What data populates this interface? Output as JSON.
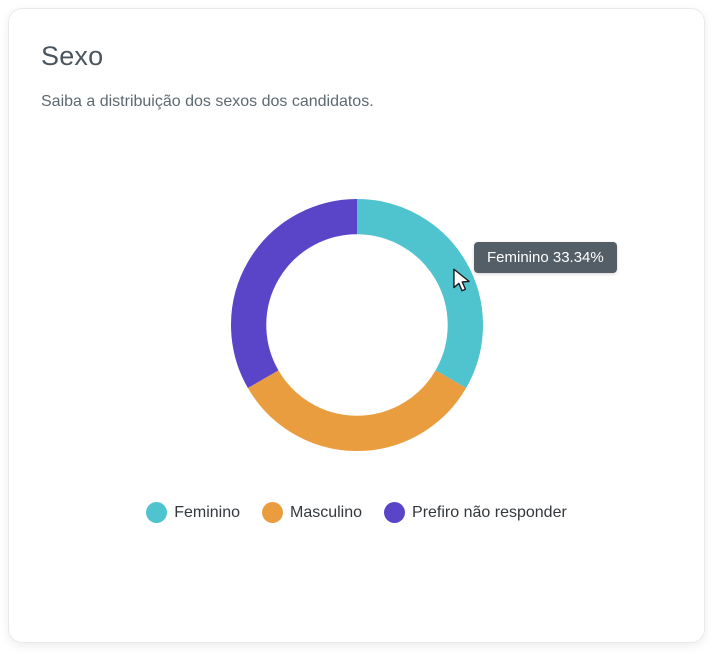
{
  "card": {
    "title": "Sexo",
    "subtitle": "Saiba a distribuição dos sexos dos candidatos."
  },
  "tooltip": {
    "text": "Feminino 33.34%",
    "background_color": "#4E5962",
    "text_color": "#ffffff"
  },
  "chart_data": {
    "type": "pie",
    "variant": "doughnut",
    "title": "Sexo",
    "subtitle": "Saiba a distribuição dos sexos dos candidatos.",
    "unit": "%",
    "start_angle_deg": 0,
    "direction": "clockwise",
    "inner_radius_ratio": 0.72,
    "legend_position": "bottom",
    "segments": [
      {
        "label": "Feminino",
        "value": 33.34,
        "color": "#4FC3CE"
      },
      {
        "label": "Masculino",
        "value": 33.33,
        "color": "#EA9D3F"
      },
      {
        "label": "Prefiro não responder",
        "value": 33.33,
        "color": "#5A45C8"
      }
    ]
  }
}
